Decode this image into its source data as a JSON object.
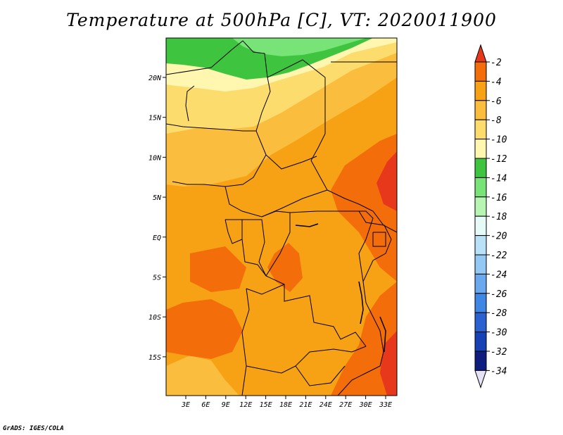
{
  "title": "Temperature at 500hPa [C], VT: 2020011900",
  "credit": "GrADS: IGES/COLA",
  "map": {
    "lon_labels": [
      "3E",
      "6E",
      "9E",
      "12E",
      "15E",
      "18E",
      "21E",
      "24E",
      "27E",
      "30E",
      "33E"
    ],
    "lat_labels": [
      "20N",
      "15N",
      "10N",
      "5N",
      "EQ",
      "5S",
      "10S",
      "15S"
    ]
  },
  "colorbar": {
    "labels": [
      "-2",
      "-4",
      "-6",
      "-8",
      "-10",
      "-12",
      "-14",
      "-16",
      "-18",
      "-20",
      "-22",
      "-24",
      "-26",
      "-28",
      "-30",
      "-32",
      "-34"
    ],
    "colors": [
      "#e8381b",
      "#f46d0b",
      "#f7a214",
      "#fbbd3d",
      "#fddc6e",
      "#fff6b0",
      "#3fc43f",
      "#78e478",
      "#b7f5b3",
      "#e6fbf8",
      "#b9e2f8",
      "#93c9f3",
      "#6aa9ee",
      "#3f86e5",
      "#2a62d2",
      "#1742b5",
      "#0f1d7e",
      "#e6e2f6"
    ]
  }
}
